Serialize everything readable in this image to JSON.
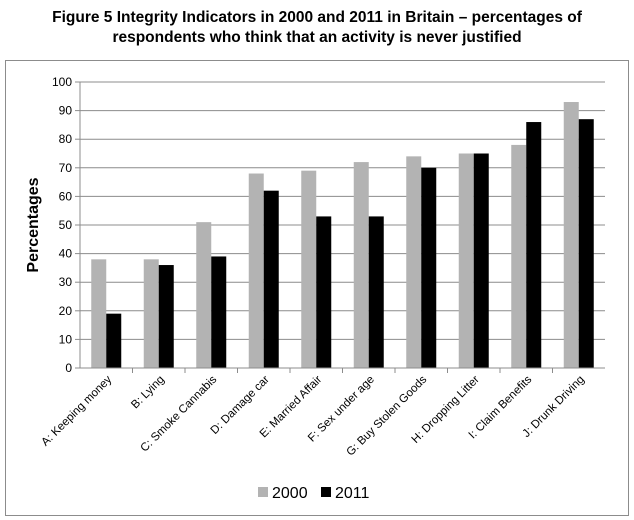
{
  "figure": {
    "title_line1": "Figure 5 Integrity Indicators in 2000 and 2011 in Britain – percentages of",
    "title_line2": "respondents who think that an activity is never justified"
  },
  "chart_data": {
    "type": "bar",
    "title": "Figure 5 Integrity Indicators in 2000 and 2011 in Britain – percentages of respondents who think that an activity is never justified",
    "xlabel": "",
    "ylabel": "Percentages",
    "ylim": [
      0,
      100
    ],
    "ytick_step": 10,
    "grid": true,
    "legend_position": "bottom",
    "categories": [
      "A: Keeping money",
      "B: Lying",
      "C: Smoke Cannabis",
      "D: Damage car",
      "E: Married Affair",
      "F: Sex under age",
      "G: Buy Stolen Goods",
      "H: Dropping Litter",
      "I: Claim Benefits",
      "J: Drunk Driving"
    ],
    "series": [
      {
        "name": "2000",
        "color": "#b3b3b3",
        "values": [
          38,
          38,
          51,
          68,
          69,
          72,
          74,
          75,
          78,
          93
        ]
      },
      {
        "name": "2011",
        "color": "#000000",
        "values": [
          19,
          36,
          39,
          62,
          53,
          53,
          70,
          75,
          86,
          87
        ]
      }
    ]
  }
}
